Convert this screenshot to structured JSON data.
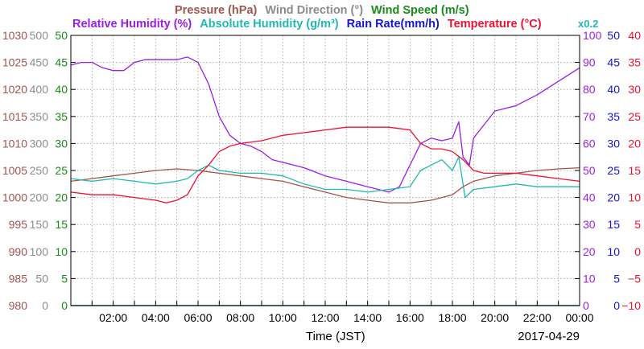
{
  "colors": {
    "pressure": "#a0554f",
    "wind_direction": "#8c8c8c",
    "wind_speed": "#1a8a1a",
    "relative_humidity": "#9a1ee6",
    "absolute_humidity": "#20b8b0",
    "rain_rate": "#1414d2",
    "temperature": "#ee1030",
    "grid": "#999999",
    "frame": "#000000"
  },
  "chart_data": {
    "type": "line",
    "title_row1": [
      {
        "key": "pressure",
        "text": "Pressure (hPa)"
      },
      {
        "key": "wind_direction",
        "text": "Wind Direction (°)"
      },
      {
        "key": "wind_speed",
        "text": "Wind Speed (m/s)"
      }
    ],
    "title_row2": [
      {
        "key": "relative_humidity",
        "text": "Relative Humidity (%)"
      },
      {
        "key": "absolute_humidity",
        "text": "Absolute Humidity (g/m³)"
      },
      {
        "key": "rain_rate",
        "text": "Rain Rate(mm/h)"
      },
      {
        "key": "temperature",
        "text": "Temperature (°C)"
      }
    ],
    "scale_note": "x0.2",
    "xlabel": "Time (JST)",
    "date": "2017-04-29",
    "x_tick_labels": [
      "02:00",
      "04:00",
      "06:00",
      "08:00",
      "10:00",
      "12:00",
      "14:00",
      "16:00",
      "18:00",
      "20:00",
      "22:00",
      "00:00"
    ],
    "x_ticks_hours": [
      2,
      4,
      6,
      8,
      10,
      12,
      14,
      16,
      18,
      20,
      22,
      24
    ],
    "xlim_hours": [
      0,
      24
    ],
    "axes": {
      "pressure": {
        "range": [
          980,
          1030
        ],
        "ticks": [
          980,
          985,
          990,
          995,
          1000,
          1005,
          1010,
          1015,
          1020,
          1025,
          1030
        ]
      },
      "wind_direction": {
        "range": [
          0,
          500
        ],
        "ticks": [
          0,
          50,
          100,
          150,
          200,
          250,
          300,
          350,
          400,
          450,
          500
        ]
      },
      "wind_speed": {
        "range": [
          0,
          50
        ],
        "ticks": [
          0,
          5,
          10,
          15,
          20,
          25,
          30,
          35,
          40,
          45,
          50
        ]
      },
      "relative_humidity": {
        "range": [
          0,
          100
        ],
        "ticks": [
          0,
          10,
          20,
          30,
          40,
          50,
          60,
          70,
          80,
          90,
          100
        ]
      },
      "rain_rate": {
        "range": [
          0,
          50
        ],
        "ticks": [
          0,
          5,
          10,
          15,
          20,
          25,
          30,
          35,
          40,
          45,
          50
        ]
      },
      "temperature": {
        "range": [
          -10,
          40
        ],
        "ticks": [
          "−10",
          "−5",
          "0",
          "5",
          "10",
          "15",
          "20",
          "25",
          "30",
          "35",
          "40"
        ]
      }
    },
    "series": [
      {
        "name": "Pressure (hPa)",
        "key": "pressure",
        "axis": "pressure",
        "x": [
          0,
          1,
          2,
          3,
          4,
          5,
          6,
          7,
          8,
          9,
          10,
          11,
          12,
          13,
          14,
          15,
          16,
          17,
          18,
          18.5,
          19,
          20,
          21,
          22,
          23,
          24
        ],
        "y": [
          1003.0,
          1003.5,
          1004.0,
          1004.5,
          1005.0,
          1005.3,
          1005.0,
          1004.5,
          1004.0,
          1003.5,
          1003.0,
          1002.0,
          1001.0,
          1000.0,
          999.5,
          999.0,
          999.0,
          999.5,
          1000.5,
          1002,
          1003,
          1004,
          1004.5,
          1005,
          1005.3,
          1005.5
        ]
      },
      {
        "name": "Relative Humidity (%)",
        "key": "relative_humidity",
        "axis": "relative_humidity",
        "x": [
          0,
          0.5,
          1,
          1.5,
          2,
          2.5,
          3,
          3.5,
          4,
          4.5,
          5,
          5.5,
          6,
          6.5,
          7,
          7.5,
          8,
          8.5,
          9,
          9.5,
          10,
          11,
          12,
          13,
          14,
          14.5,
          15,
          15.5,
          16,
          16.5,
          17,
          17.5,
          18,
          18.3,
          18.5,
          18.8,
          19,
          19.5,
          20,
          21,
          22,
          23,
          24
        ],
        "y": [
          89,
          90,
          90,
          88,
          87,
          87,
          90,
          91,
          91,
          91,
          91,
          92,
          90,
          82,
          70,
          63,
          60,
          59,
          57,
          54,
          53,
          51,
          48,
          46,
          44,
          43,
          42,
          44,
          52,
          60,
          62,
          61,
          62,
          68,
          55,
          52,
          62,
          67,
          72,
          74,
          78,
          83,
          88
        ]
      },
      {
        "name": "Absolute Humidity (g/m3)",
        "key": "absolute_humidity",
        "axis": "wind_speed",
        "x": [
          0,
          1,
          2,
          3,
          4,
          5,
          5.5,
          6,
          6.5,
          7,
          8,
          9,
          10,
          11,
          12,
          13,
          14,
          15,
          16,
          16.5,
          17,
          17.5,
          18,
          18.3,
          18.6,
          19,
          20,
          21,
          22,
          23,
          24
        ],
        "y": [
          23.5,
          23.0,
          23.5,
          23.0,
          22.5,
          23.0,
          23.5,
          25.0,
          26.0,
          25.0,
          24.5,
          24.5,
          24.0,
          22.5,
          21.5,
          21.5,
          21.0,
          21.5,
          22.0,
          25.0,
          26.0,
          27.0,
          25.0,
          27.5,
          20.0,
          21.5,
          22.0,
          22.5,
          22.0,
          22.0,
          22.0
        ]
      },
      {
        "name": "Temperature (°C)",
        "key": "temperature",
        "axis": "temperature",
        "x": [
          0,
          1,
          2,
          3,
          4,
          4.5,
          5,
          5.5,
          6,
          6.5,
          7,
          7.5,
          8,
          9,
          10,
          11,
          12,
          13,
          14,
          15,
          16,
          16.5,
          17,
          17.5,
          18,
          18.5,
          19,
          19.5,
          20,
          21,
          22,
          23,
          24
        ],
        "y": [
          11.0,
          10.5,
          10.5,
          10.0,
          9.5,
          9.0,
          9.5,
          10.5,
          14.0,
          16.0,
          18.5,
          19.5,
          20.0,
          20.5,
          21.5,
          22.0,
          22.5,
          23.0,
          23.0,
          23.0,
          22.5,
          20.0,
          19.0,
          19.0,
          18.5,
          17.0,
          15.0,
          14.5,
          14.5,
          14.5,
          14.0,
          13.5,
          13.0
        ]
      },
      {
        "name": "Rain Rate(mm/h)",
        "key": "rain_rate",
        "axis": "rain_rate",
        "x": [
          0,
          24
        ],
        "y": [
          0,
          0
        ]
      },
      {
        "name": "Wind Speed (m/s)",
        "key": "wind_speed",
        "axis": "wind_speed",
        "x": [
          0,
          24
        ],
        "y": [
          0,
          0
        ]
      }
    ],
    "grid": true
  }
}
